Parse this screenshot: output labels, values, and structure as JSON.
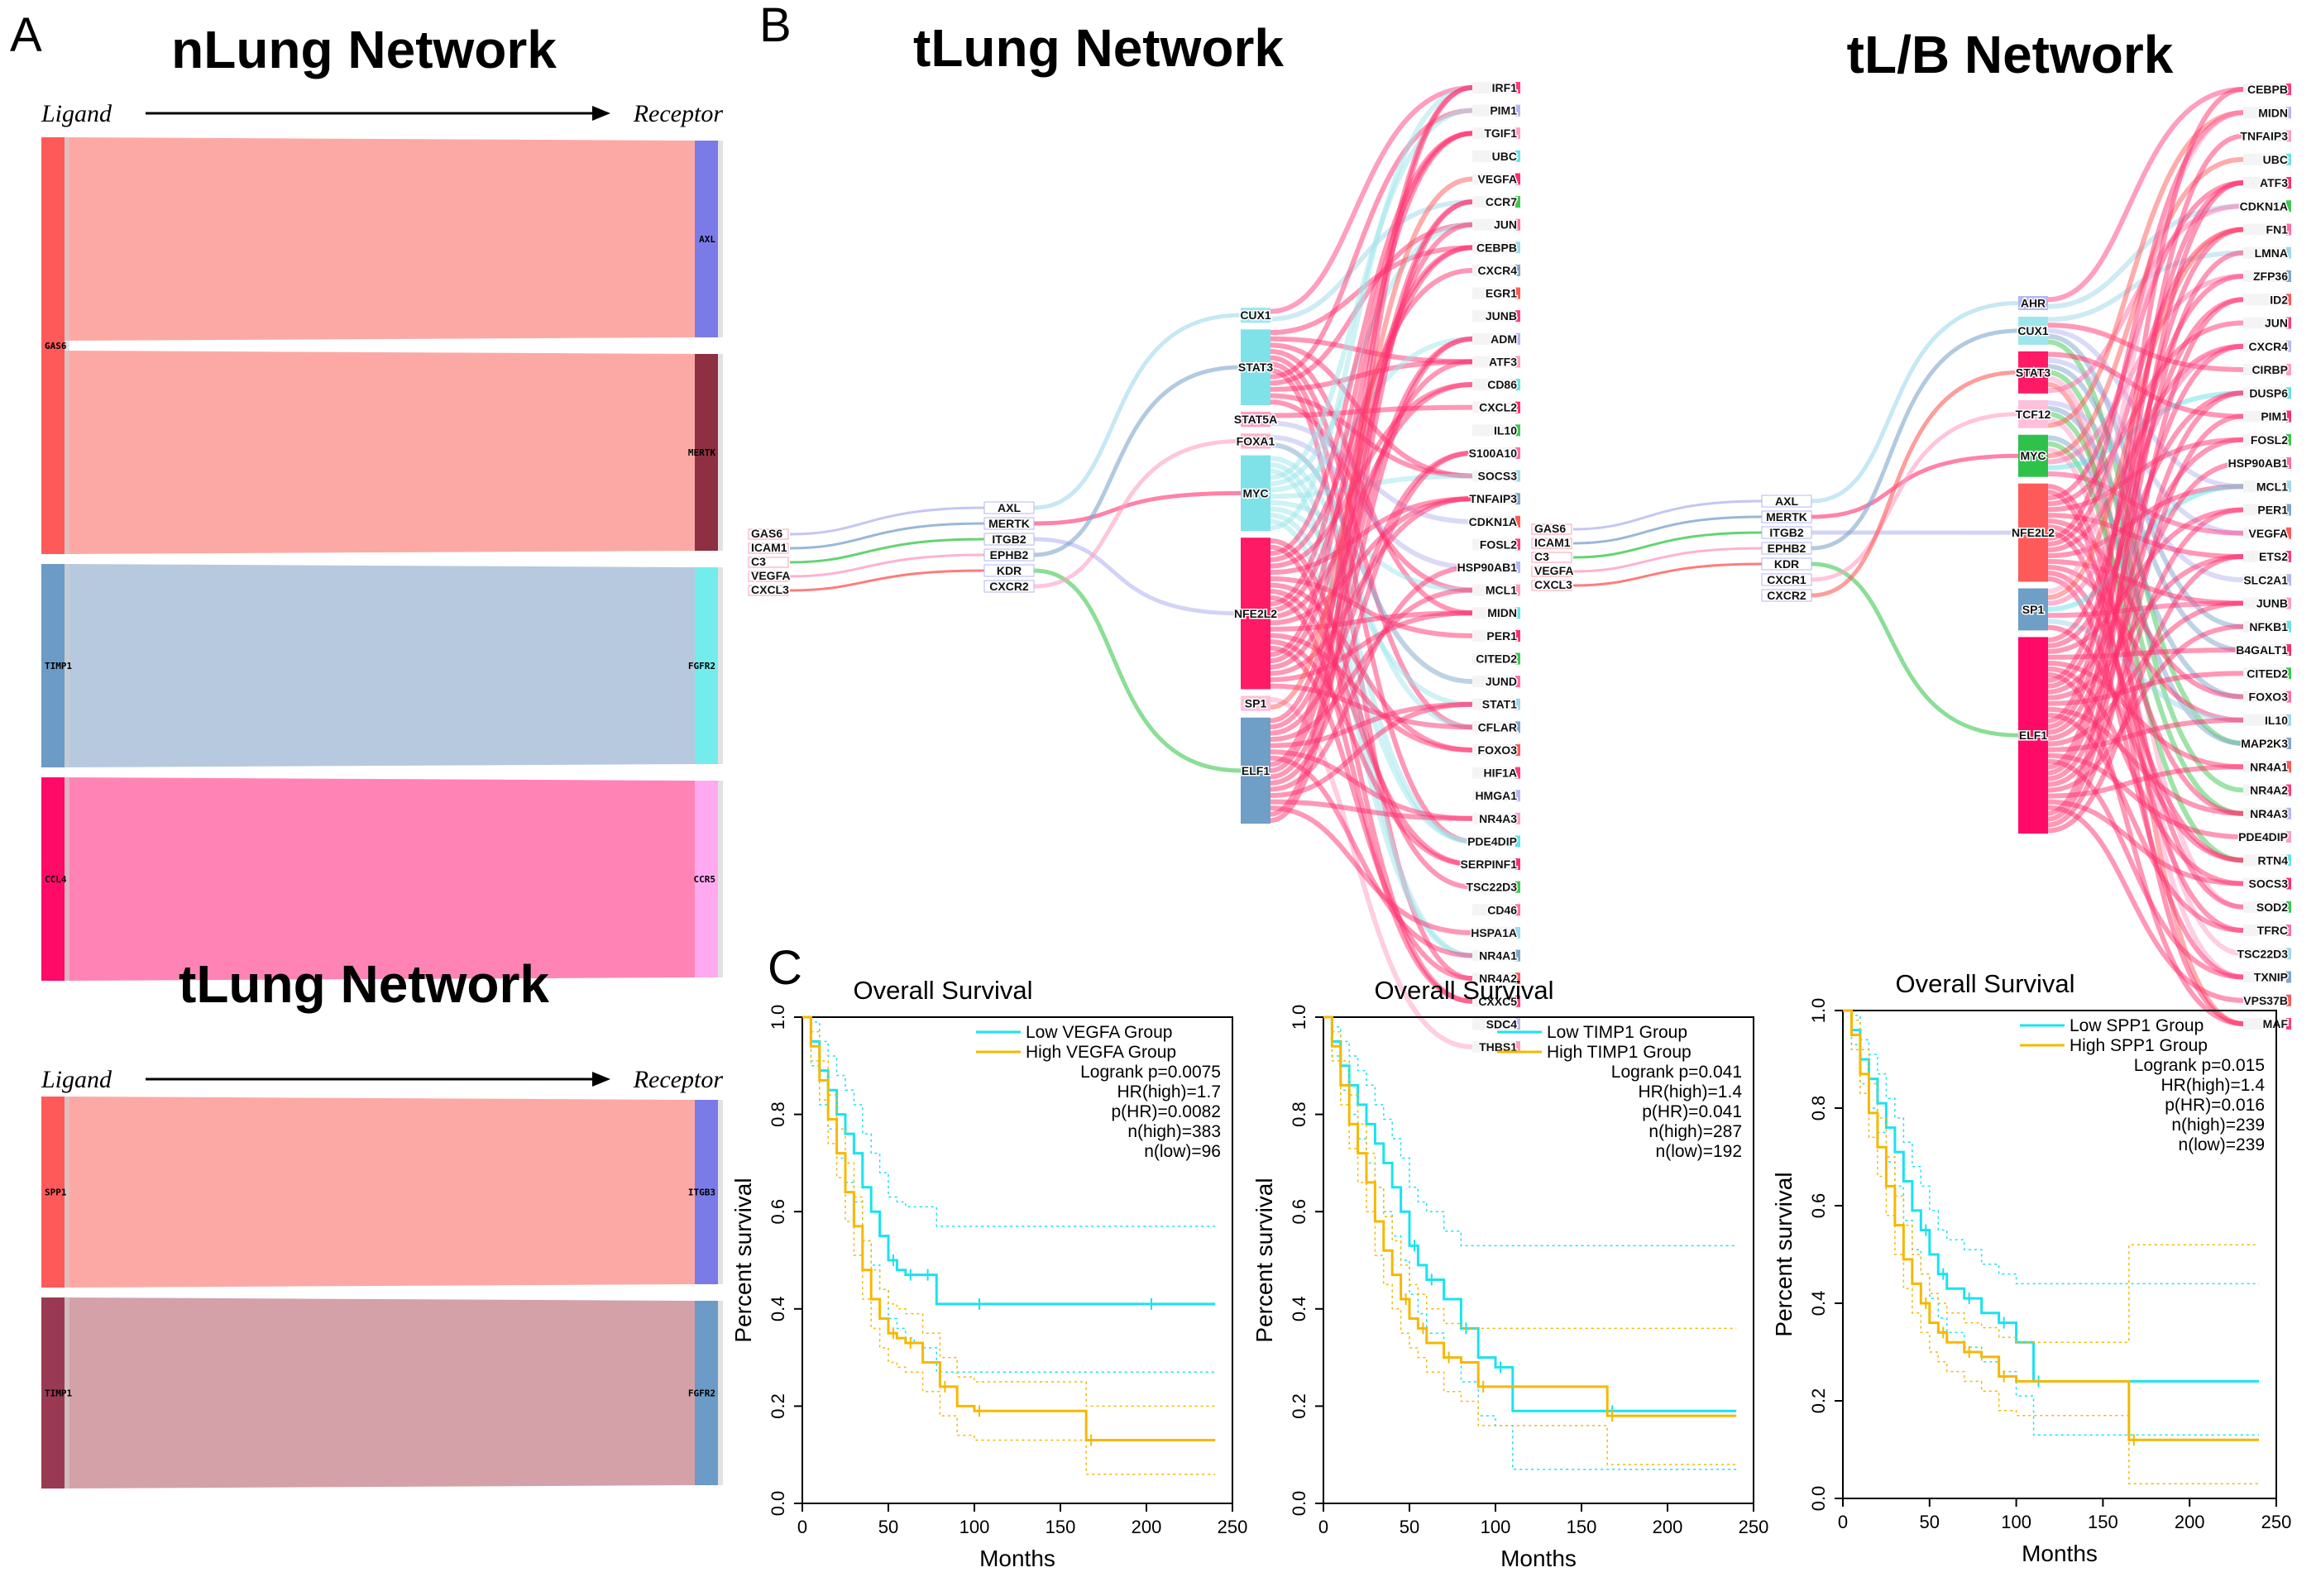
{
  "panel_labels": {
    "a": "A",
    "b": "B",
    "c": "C"
  },
  "panelA": {
    "axis_left": "Ligand",
    "axis_right": "Receptor",
    "networks": [
      {
        "title": "nLung Network",
        "links": [
          {
            "ligand": "GAS6",
            "receptor": "AXL",
            "weight": 1,
            "color": "#fc9a96",
            "lcolor": "#ff5a5a",
            "rcolor": "#7b7be8"
          },
          {
            "ligand": "GAS6",
            "receptor": "MERTK",
            "weight": 1,
            "color": "#fc9a96",
            "lcolor": "#ff5a5a",
            "rcolor": "#8e3042"
          },
          {
            "ligand": "TIMP1",
            "receptor": "FGFR2",
            "weight": 1,
            "color": "#aac0d8",
            "lcolor": "#6b9bc6",
            "rcolor": "#74ecec"
          },
          {
            "ligand": "CCL4",
            "receptor": "CCR5",
            "weight": 1,
            "color": "#ff6ea8",
            "lcolor": "#ff0a66",
            "rcolor": "#ffaaf0"
          }
        ]
      },
      {
        "title": "tLung Network",
        "links": [
          {
            "ligand": "SPP1",
            "receptor": "ITGB3",
            "weight": 1,
            "color": "#fc9a96",
            "lcolor": "#ff5a5a",
            "rcolor": "#7b7be8"
          },
          {
            "ligand": "TIMP1",
            "receptor": "FGFR2",
            "weight": 1,
            "color": "#cc9099",
            "lcolor": "#9a3a52",
            "rcolor": "#6b9bc6"
          }
        ]
      }
    ]
  },
  "panelB": [
    {
      "title": "tLung Network",
      "ligands": [
        "GAS6",
        "ICAM1",
        "C3",
        "VEGFA",
        "CXCL3"
      ],
      "receptors": [
        "AXL",
        "MERTK",
        "ITGB2",
        "EPHB2",
        "KDR",
        "CXCR2"
      ],
      "tfs": [
        {
          "name": "CUX1",
          "w": 1
        },
        {
          "name": "STAT3",
          "w": 5
        },
        {
          "name": "STAT5A",
          "w": 1
        },
        {
          "name": "FOXA1",
          "w": 1
        },
        {
          "name": "MYC",
          "w": 5
        },
        {
          "name": "NFE2L2",
          "w": 10
        },
        {
          "name": "SP1",
          "w": 1
        },
        {
          "name": "ELF1",
          "w": 7
        }
      ],
      "targets": [
        "IRF1",
        "PIM1",
        "TGIF1",
        "UBC",
        "VEGFA",
        "CCR7",
        "JUN",
        "CEBPB",
        "CXCR4",
        "EGR1",
        "JUNB",
        "ADM",
        "ATF3",
        "CD86",
        "CXCL2",
        "IL10",
        "S100A10",
        "SOCS3",
        "TNFAIP3",
        "CDKN1A",
        "FOSL2",
        "HSP90AB1",
        "MCL1",
        "MIDN",
        "PER1",
        "CITED2",
        "JUND",
        "STAT1",
        "CFLAR",
        "FOXO3",
        "HIF1A",
        "HMGA1",
        "NR4A3",
        "PDE4DIP",
        "SERPINF1",
        "TSC22D3",
        "CD46",
        "HSPA1A",
        "NR4A1",
        "NR4A2",
        "CXXC5",
        "SDC4",
        "THBS1"
      ]
    },
    {
      "title": "tL/B Network",
      "ligands": [
        "GAS6",
        "ICAM1",
        "C3",
        "VEGFA",
        "CXCL3"
      ],
      "receptors": [
        "AXL",
        "MERTK",
        "ITGB2",
        "EPHB2",
        "KDR",
        "CXCR1",
        "CXCR2"
      ],
      "tfs": [
        {
          "name": "AHR",
          "w": 1
        },
        {
          "name": "CUX1",
          "w": 2
        },
        {
          "name": "STAT3",
          "w": 3
        },
        {
          "name": "TCF12",
          "w": 2
        },
        {
          "name": "MYC",
          "w": 3
        },
        {
          "name": "NFE2L2",
          "w": 7
        },
        {
          "name": "SP1",
          "w": 3
        },
        {
          "name": "ELF1",
          "w": 14
        }
      ],
      "targets": [
        "CEBPB",
        "MIDN",
        "TNFAIP3",
        "UBC",
        "ATF3",
        "CDKN1A",
        "FN1",
        "LMNA",
        "ZFP36",
        "ID2",
        "JUN",
        "CXCR4",
        "CIRBP",
        "DUSP6",
        "PIM1",
        "FOSL2",
        "HSP90AB1",
        "MCL1",
        "PER1",
        "VEGFA",
        "ETS2",
        "SLC2A1",
        "JUNB",
        "NFKB1",
        "B4GALT1",
        "CITED2",
        "FOXO3",
        "IL10",
        "MAP2K3",
        "NR4A1",
        "NR4A2",
        "NR4A3",
        "PDE4DIP",
        "RTN4",
        "SOCS3",
        "SOD2",
        "TFRC",
        "TSC22D3",
        "TXNIP",
        "VPS37B",
        "MAF"
      ]
    }
  ],
  "chart_data": [
    {
      "type": "line",
      "title": "Overall Survival",
      "xlabel": "Months",
      "ylabel": "Percent survival",
      "xlim": [
        0,
        250
      ],
      "ylim": [
        0,
        1
      ],
      "xticks": [
        0,
        50,
        100,
        150,
        200,
        250
      ],
      "yticks": [
        0.0,
        0.2,
        0.4,
        0.6,
        0.8,
        1.0
      ],
      "legend": [
        "Low VEGFA Group",
        "High VEGFA Group"
      ],
      "stats": [
        "Logrank p=0.0075",
        "HR(high)=1.7",
        "p(HR)=0.0082",
        "n(high)=383",
        "n(low)=96"
      ],
      "series": [
        {
          "name": "Low VEGFA Group",
          "color": "#19e3f0",
          "x": [
            0,
            5,
            10,
            15,
            20,
            25,
            30,
            35,
            40,
            45,
            50,
            55,
            60,
            65,
            70,
            78,
            100,
            150,
            200,
            240
          ],
          "y": [
            1.0,
            0.95,
            0.89,
            0.85,
            0.8,
            0.76,
            0.72,
            0.65,
            0.6,
            0.55,
            0.5,
            0.48,
            0.47,
            0.47,
            0.47,
            0.41,
            0.41,
            0.41,
            0.41,
            0.41
          ],
          "upper": [
            1.0,
            0.99,
            0.95,
            0.92,
            0.88,
            0.85,
            0.82,
            0.76,
            0.72,
            0.68,
            0.63,
            0.62,
            0.61,
            0.61,
            0.61,
            0.57,
            0.57,
            0.57,
            0.57,
            0.57
          ],
          "lower": [
            1.0,
            0.9,
            0.82,
            0.77,
            0.71,
            0.66,
            0.62,
            0.54,
            0.49,
            0.44,
            0.38,
            0.36,
            0.34,
            0.33,
            0.32,
            0.27,
            0.27,
            0.27,
            0.27,
            0.27
          ]
        },
        {
          "name": "High VEGFA Group",
          "color": "#f5b800",
          "x": [
            0,
            5,
            10,
            15,
            20,
            25,
            30,
            35,
            40,
            45,
            50,
            55,
            60,
            70,
            80,
            90,
            100,
            130,
            165,
            240
          ],
          "y": [
            1.0,
            0.94,
            0.87,
            0.79,
            0.72,
            0.64,
            0.57,
            0.48,
            0.42,
            0.38,
            0.35,
            0.34,
            0.33,
            0.29,
            0.24,
            0.2,
            0.19,
            0.19,
            0.13,
            0.13
          ],
          "upper": [
            1.0,
            0.97,
            0.91,
            0.84,
            0.77,
            0.7,
            0.63,
            0.54,
            0.48,
            0.44,
            0.41,
            0.4,
            0.39,
            0.35,
            0.3,
            0.26,
            0.25,
            0.25,
            0.2,
            0.2
          ],
          "lower": [
            1.0,
            0.91,
            0.83,
            0.74,
            0.67,
            0.58,
            0.51,
            0.42,
            0.36,
            0.32,
            0.29,
            0.28,
            0.27,
            0.23,
            0.18,
            0.14,
            0.13,
            0.13,
            0.06,
            0.06
          ]
        }
      ]
    },
    {
      "type": "line",
      "title": "Overall Survival",
      "xlabel": "Months",
      "ylabel": "Percent survival",
      "xlim": [
        0,
        250
      ],
      "ylim": [
        0,
        1
      ],
      "xticks": [
        0,
        50,
        100,
        150,
        200,
        250
      ],
      "yticks": [
        0.0,
        0.2,
        0.4,
        0.6,
        0.8,
        1.0
      ],
      "legend": [
        "Low TIMP1 Group",
        "High TIMP1 Group"
      ],
      "stats": [
        "Logrank p=0.041",
        "HR(high)=1.4",
        "p(HR)=0.041",
        "n(high)=287",
        "n(low)=192"
      ],
      "series": [
        {
          "name": "Low TIMP1 Group",
          "color": "#19e3f0",
          "x": [
            0,
            5,
            10,
            15,
            20,
            25,
            30,
            35,
            40,
            45,
            50,
            55,
            60,
            70,
            80,
            90,
            100,
            110,
            165,
            240
          ],
          "y": [
            1.0,
            0.95,
            0.9,
            0.86,
            0.82,
            0.78,
            0.74,
            0.7,
            0.65,
            0.6,
            0.53,
            0.49,
            0.46,
            0.42,
            0.36,
            0.3,
            0.28,
            0.19,
            0.19,
            0.19
          ],
          "upper": [
            1.0,
            0.98,
            0.95,
            0.92,
            0.89,
            0.86,
            0.82,
            0.79,
            0.75,
            0.71,
            0.65,
            0.62,
            0.6,
            0.56,
            0.53,
            0.53,
            0.53,
            0.53,
            0.53,
            0.53
          ],
          "lower": [
            1.0,
            0.92,
            0.85,
            0.8,
            0.75,
            0.7,
            0.65,
            0.6,
            0.55,
            0.5,
            0.43,
            0.39,
            0.35,
            0.3,
            0.25,
            0.18,
            0.16,
            0.07,
            0.07,
            0.07
          ]
        },
        {
          "name": "High TIMP1 Group",
          "color": "#f5b800",
          "x": [
            0,
            5,
            10,
            15,
            20,
            25,
            30,
            35,
            40,
            45,
            50,
            55,
            60,
            70,
            80,
            90,
            100,
            165,
            240
          ],
          "y": [
            1.0,
            0.94,
            0.86,
            0.78,
            0.72,
            0.66,
            0.58,
            0.52,
            0.47,
            0.42,
            0.38,
            0.36,
            0.33,
            0.3,
            0.29,
            0.24,
            0.24,
            0.18,
            0.18
          ],
          "upper": [
            1.0,
            0.97,
            0.91,
            0.84,
            0.78,
            0.72,
            0.65,
            0.59,
            0.54,
            0.49,
            0.45,
            0.43,
            0.4,
            0.37,
            0.36,
            0.36,
            0.36,
            0.36,
            0.36
          ],
          "lower": [
            1.0,
            0.91,
            0.82,
            0.73,
            0.66,
            0.6,
            0.51,
            0.45,
            0.4,
            0.35,
            0.32,
            0.3,
            0.27,
            0.23,
            0.21,
            0.16,
            0.16,
            0.08,
            0.08
          ]
        }
      ]
    },
    {
      "type": "line",
      "title": "Overall Survival",
      "xlabel": "Months",
      "ylabel": "Percent survival",
      "xlim": [
        0,
        250
      ],
      "ylim": [
        0,
        1
      ],
      "xticks": [
        0,
        50,
        100,
        150,
        200,
        250
      ],
      "yticks": [
        0.0,
        0.2,
        0.4,
        0.6,
        0.8,
        1.0
      ],
      "legend": [
        "Low SPP1 Group",
        "High SPP1 Group"
      ],
      "stats": [
        "Logrank p=0.015",
        "HR(high)=1.4",
        "p(HR)=0.016",
        "n(high)=239",
        "n(low)=239"
      ],
      "series": [
        {
          "name": "Low SPP1 Group",
          "color": "#19e3f0",
          "x": [
            0,
            5,
            10,
            15,
            20,
            25,
            30,
            35,
            40,
            45,
            50,
            55,
            60,
            70,
            80,
            90,
            100,
            110,
            240
          ],
          "y": [
            1.0,
            0.96,
            0.9,
            0.86,
            0.81,
            0.76,
            0.71,
            0.65,
            0.59,
            0.55,
            0.5,
            0.46,
            0.43,
            0.41,
            0.38,
            0.36,
            0.32,
            0.24,
            0.24
          ],
          "upper": [
            1.0,
            0.99,
            0.94,
            0.91,
            0.87,
            0.82,
            0.78,
            0.73,
            0.68,
            0.64,
            0.59,
            0.55,
            0.53,
            0.51,
            0.48,
            0.46,
            0.44,
            0.44,
            0.44
          ],
          "lower": [
            1.0,
            0.93,
            0.85,
            0.8,
            0.75,
            0.69,
            0.64,
            0.57,
            0.51,
            0.46,
            0.41,
            0.37,
            0.34,
            0.31,
            0.28,
            0.26,
            0.21,
            0.13,
            0.13
          ]
        },
        {
          "name": "High SPP1 Group",
          "color": "#f5b800",
          "x": [
            0,
            5,
            10,
            15,
            20,
            25,
            30,
            35,
            40,
            45,
            50,
            55,
            60,
            70,
            80,
            90,
            100,
            165,
            240
          ],
          "y": [
            1.0,
            0.95,
            0.87,
            0.79,
            0.72,
            0.64,
            0.56,
            0.49,
            0.44,
            0.4,
            0.36,
            0.34,
            0.32,
            0.3,
            0.29,
            0.25,
            0.24,
            0.12,
            0.12
          ],
          "upper": [
            1.0,
            0.98,
            0.92,
            0.85,
            0.78,
            0.7,
            0.62,
            0.56,
            0.5,
            0.46,
            0.42,
            0.4,
            0.38,
            0.36,
            0.35,
            0.33,
            0.32,
            0.52,
            0.52
          ],
          "lower": [
            1.0,
            0.92,
            0.83,
            0.74,
            0.66,
            0.58,
            0.5,
            0.43,
            0.38,
            0.34,
            0.3,
            0.28,
            0.26,
            0.24,
            0.22,
            0.18,
            0.17,
            0.03,
            0.03
          ]
        }
      ]
    }
  ]
}
